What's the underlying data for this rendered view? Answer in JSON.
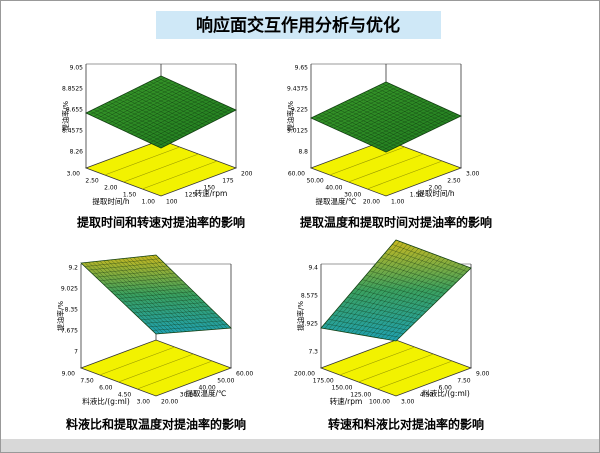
{
  "title": "响应面交互作用分析与优化",
  "panels": [
    {
      "caption": "提取时间和转速对提油率的影响",
      "z_label": "提油率/%",
      "x_label": "提取时间/h",
      "y_label": "转速/rpm",
      "z_ticks": [
        "9.05",
        "8.8525",
        "8.655",
        "8.4575",
        "8.26"
      ],
      "x_ticks": [
        "3.00",
        "2.50",
        "2.00",
        "1.50",
        "1.00"
      ],
      "y_ticks": [
        "100",
        "125",
        "150",
        "175",
        "200"
      ]
    },
    {
      "caption": "提取温度和提取时间对提油率的影响",
      "z_label": "提油率/%",
      "x_label": "提取温度/℃",
      "y_label": "提取时间/h",
      "z_ticks": [
        "9.65",
        "9.4375",
        "9.225",
        "9.0125",
        "8.8"
      ],
      "x_ticks": [
        "60.00",
        "50.00",
        "40.00",
        "30.00",
        "20.00"
      ],
      "y_ticks": [
        "1.00",
        "1.50",
        "2.00",
        "2.50",
        "3.00"
      ]
    },
    {
      "caption": "料液比和提取温度对提油率的影响",
      "z_label": "提油率/%",
      "x_label": "料液比/(g:ml)",
      "y_label": "提取温度/℃",
      "z_ticks": [
        "9.2",
        "9.025",
        "8.35",
        "7.675",
        "7"
      ],
      "x_ticks": [
        "9.00",
        "7.50",
        "6.00",
        "4.50",
        "3.00"
      ],
      "y_ticks": [
        "20.00",
        "30.00",
        "40.00",
        "50.00",
        "60.00"
      ]
    },
    {
      "caption": "转速和料液比对提油率的影响",
      "z_label": "提油率/%",
      "x_label": "转速/rpm",
      "y_label": "料液比/(g:ml)",
      "z_ticks": [
        "9.4",
        "8.575",
        "7.925",
        "7.3"
      ],
      "x_ticks": [
        "200.00",
        "175.00",
        "150.00",
        "125.00",
        "100.00"
      ],
      "y_ticks": [
        "3.00",
        "4.50",
        "6.00",
        "7.50",
        "9.00"
      ]
    }
  ]
}
